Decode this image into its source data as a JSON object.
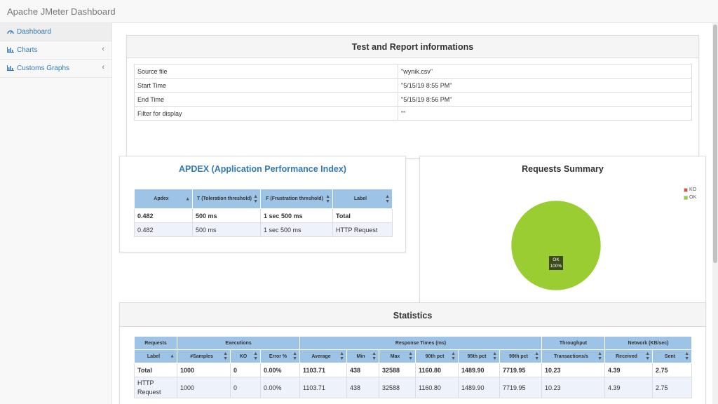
{
  "app": {
    "title": "Apache JMeter Dashboard"
  },
  "sidebar": {
    "items": [
      {
        "label": "Dashboard",
        "icon": "dashboard-icon"
      },
      {
        "label": "Charts",
        "icon": "bar-chart-icon"
      },
      {
        "label": "Customs Graphs",
        "icon": "bar-chart-icon"
      }
    ],
    "chevron": "‹"
  },
  "report": {
    "title": "Test and Report informations",
    "rows": [
      {
        "key": "Source file",
        "value": "\"wynik.csv\""
      },
      {
        "key": "Start Time",
        "value": "\"5/15/19 8:55 PM\""
      },
      {
        "key": "End Time",
        "value": "\"5/15/19 8:56 PM\""
      },
      {
        "key": "Filter for display",
        "value": "\"\""
      }
    ]
  },
  "apdex": {
    "title": "APDEX (Application Performance Index)",
    "headers": [
      "Apdex",
      "T (Toleration threshold)",
      "F (Frustration threshold)",
      "Label"
    ],
    "rows": [
      [
        "0.482",
        "500 ms",
        "1 sec 500 ms",
        "Total"
      ],
      [
        "0.482",
        "500 ms",
        "1 sec 500 ms",
        "HTTP Request"
      ]
    ]
  },
  "summary": {
    "title": "Requests Summary",
    "legend": [
      {
        "label": "KO",
        "color": "#e74c3c"
      },
      {
        "label": "OK",
        "color": "#9acd32"
      }
    ],
    "slice_label": "OK",
    "slice_value": "100%"
  },
  "chart_data": {
    "type": "pie",
    "title": "Requests Summary",
    "categories": [
      "KO",
      "OK"
    ],
    "values": [
      0,
      100
    ]
  },
  "statistics": {
    "title": "Statistics",
    "groups": [
      "Requests",
      "Executions",
      "Response Times (ms)",
      "Throughput",
      "Network (KB/sec)"
    ],
    "headers": [
      "Label",
      "#Samples",
      "KO",
      "Error %",
      "Average",
      "Min",
      "Max",
      "90th pct",
      "95th pct",
      "99th pct",
      "Transactions/s",
      "Received",
      "Sent"
    ],
    "rows": [
      [
        "Total",
        "1000",
        "0",
        "0.00%",
        "1103.71",
        "438",
        "32588",
        "1160.80",
        "1489.90",
        "7719.95",
        "10.23",
        "4.39",
        "2.75"
      ],
      [
        "HTTP Request",
        "1000",
        "0",
        "0.00%",
        "1103.71",
        "438",
        "32588",
        "1160.80",
        "1489.90",
        "7719.95",
        "10.23",
        "4.39",
        "2.75"
      ]
    ]
  }
}
